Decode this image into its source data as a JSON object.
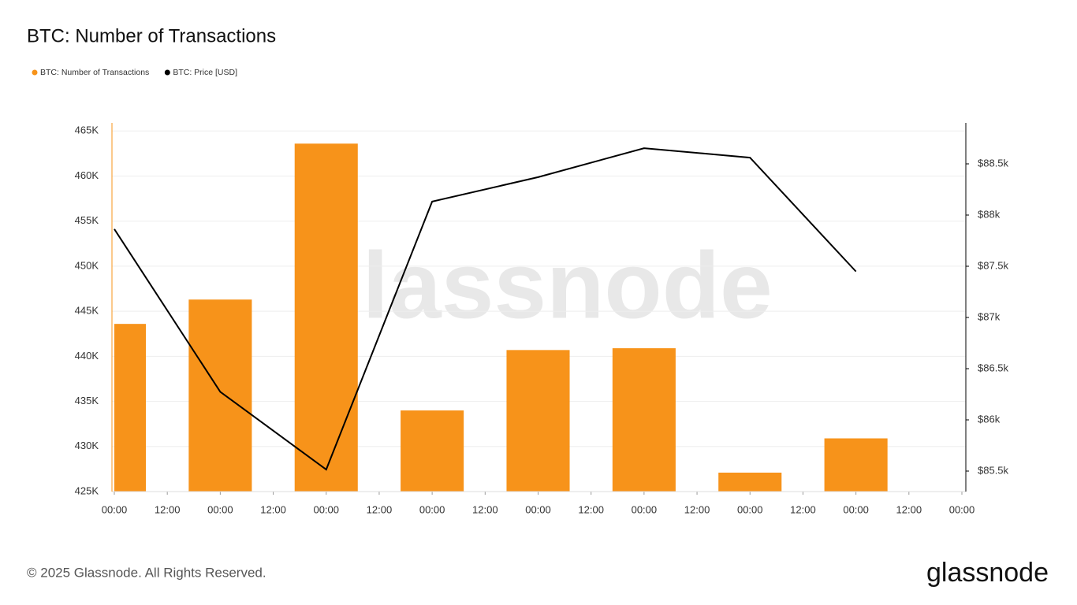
{
  "chart_data": {
    "type": "bar-line",
    "title": "BTC: Number of Transactions",
    "xlim": [
      0,
      192
    ],
    "xticks": [
      {
        "value": 0,
        "label": "00:00"
      },
      {
        "value": 12,
        "label": "12:00"
      },
      {
        "value": 24,
        "label": "00:00"
      },
      {
        "value": 36,
        "label": "12:00"
      },
      {
        "value": 48,
        "label": "00:00"
      },
      {
        "value": 60,
        "label": "12:00"
      },
      {
        "value": 72,
        "label": "00:00"
      },
      {
        "value": 84,
        "label": "12:00"
      },
      {
        "value": 96,
        "label": "00:00"
      },
      {
        "value": 108,
        "label": "12:00"
      },
      {
        "value": 120,
        "label": "00:00"
      },
      {
        "value": 132,
        "label": "12:00"
      },
      {
        "value": 144,
        "label": "00:00"
      },
      {
        "value": 156,
        "label": "12:00"
      },
      {
        "value": 168,
        "label": "00:00"
      },
      {
        "value": 180,
        "label": "12:00"
      },
      {
        "value": 192,
        "label": "00:00"
      }
    ],
    "x": [
      0,
      24,
      48,
      72,
      96,
      120,
      144,
      168
    ],
    "ylim": [
      425000,
      465900
    ],
    "yticks": [
      {
        "value": 425000,
        "label": "425K"
      },
      {
        "value": 430000,
        "label": "430K"
      },
      {
        "value": 435000,
        "label": "435K"
      },
      {
        "value": 440000,
        "label": "440K"
      },
      {
        "value": 445000,
        "label": "445K"
      },
      {
        "value": 450000,
        "label": "450K"
      },
      {
        "value": 455000,
        "label": "455K"
      },
      {
        "value": 460000,
        "label": "460K"
      },
      {
        "value": 465000,
        "label": "465K"
      }
    ],
    "y2lim": [
      85300,
      88900
    ],
    "y2ticks": [
      {
        "value": 85500,
        "label": "$85.5k"
      },
      {
        "value": 86000,
        "label": "$86k"
      },
      {
        "value": 86500,
        "label": "$86.5k"
      },
      {
        "value": 87000,
        "label": "$87k"
      },
      {
        "value": 87500,
        "label": "$87.5k"
      },
      {
        "value": 88000,
        "label": "$88k"
      },
      {
        "value": 88500,
        "label": "$88.5k"
      }
    ],
    "grid": true,
    "series": [
      {
        "name": "BTC: Number of Transactions",
        "type": "bar",
        "color": "#f7931a",
        "values": [
          443600,
          446300,
          463600,
          434000,
          440700,
          440900,
          427100,
          430900
        ]
      },
      {
        "name": "BTC: Price [USD]",
        "type": "line",
        "axis": "y2",
        "color": "#000000",
        "values": [
          87863,
          86274,
          85515,
          88132,
          88370,
          88653,
          88561,
          87449
        ]
      }
    ],
    "watermark": "glassnode",
    "footer": "© 2025 Glassnode. All Rights Reserved.",
    "logo": "glassnode"
  }
}
